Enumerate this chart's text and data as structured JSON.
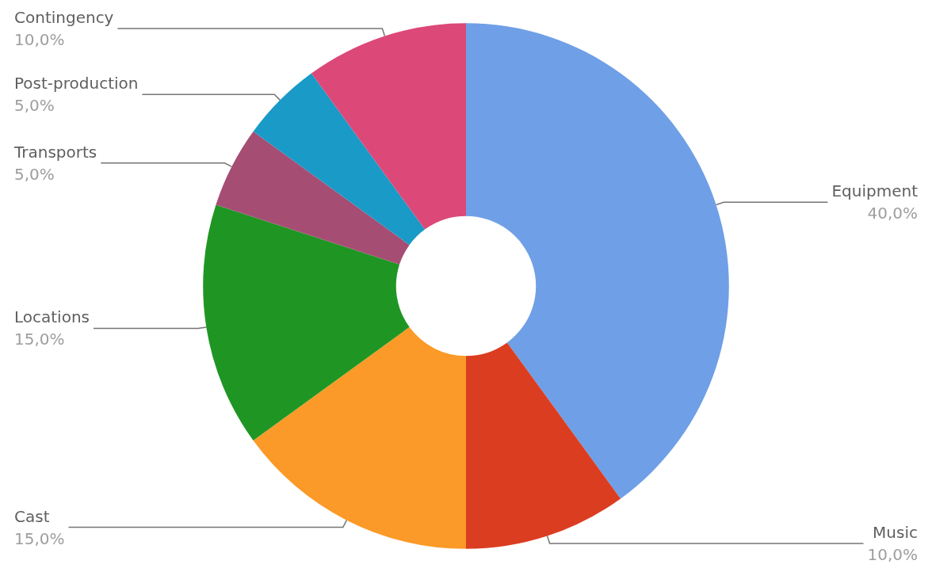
{
  "chart_data": {
    "type": "donut",
    "categories": [
      "Equipment",
      "Music",
      "Cast",
      "Locations",
      "Transports",
      "Post-production",
      "Contingency"
    ],
    "values": [
      40,
      10,
      15,
      15,
      5,
      5,
      10
    ],
    "colors": [
      "#6f9fe6",
      "#db3d21",
      "#fb9a28",
      "#1f9624",
      "#a64d74",
      "#1a9ac6",
      "#dc4878"
    ],
    "value_labels": [
      "40,0%",
      "10,0%",
      "15,0%",
      "15,0%",
      "5,0%",
      "5,0%",
      "10,0%"
    ]
  }
}
